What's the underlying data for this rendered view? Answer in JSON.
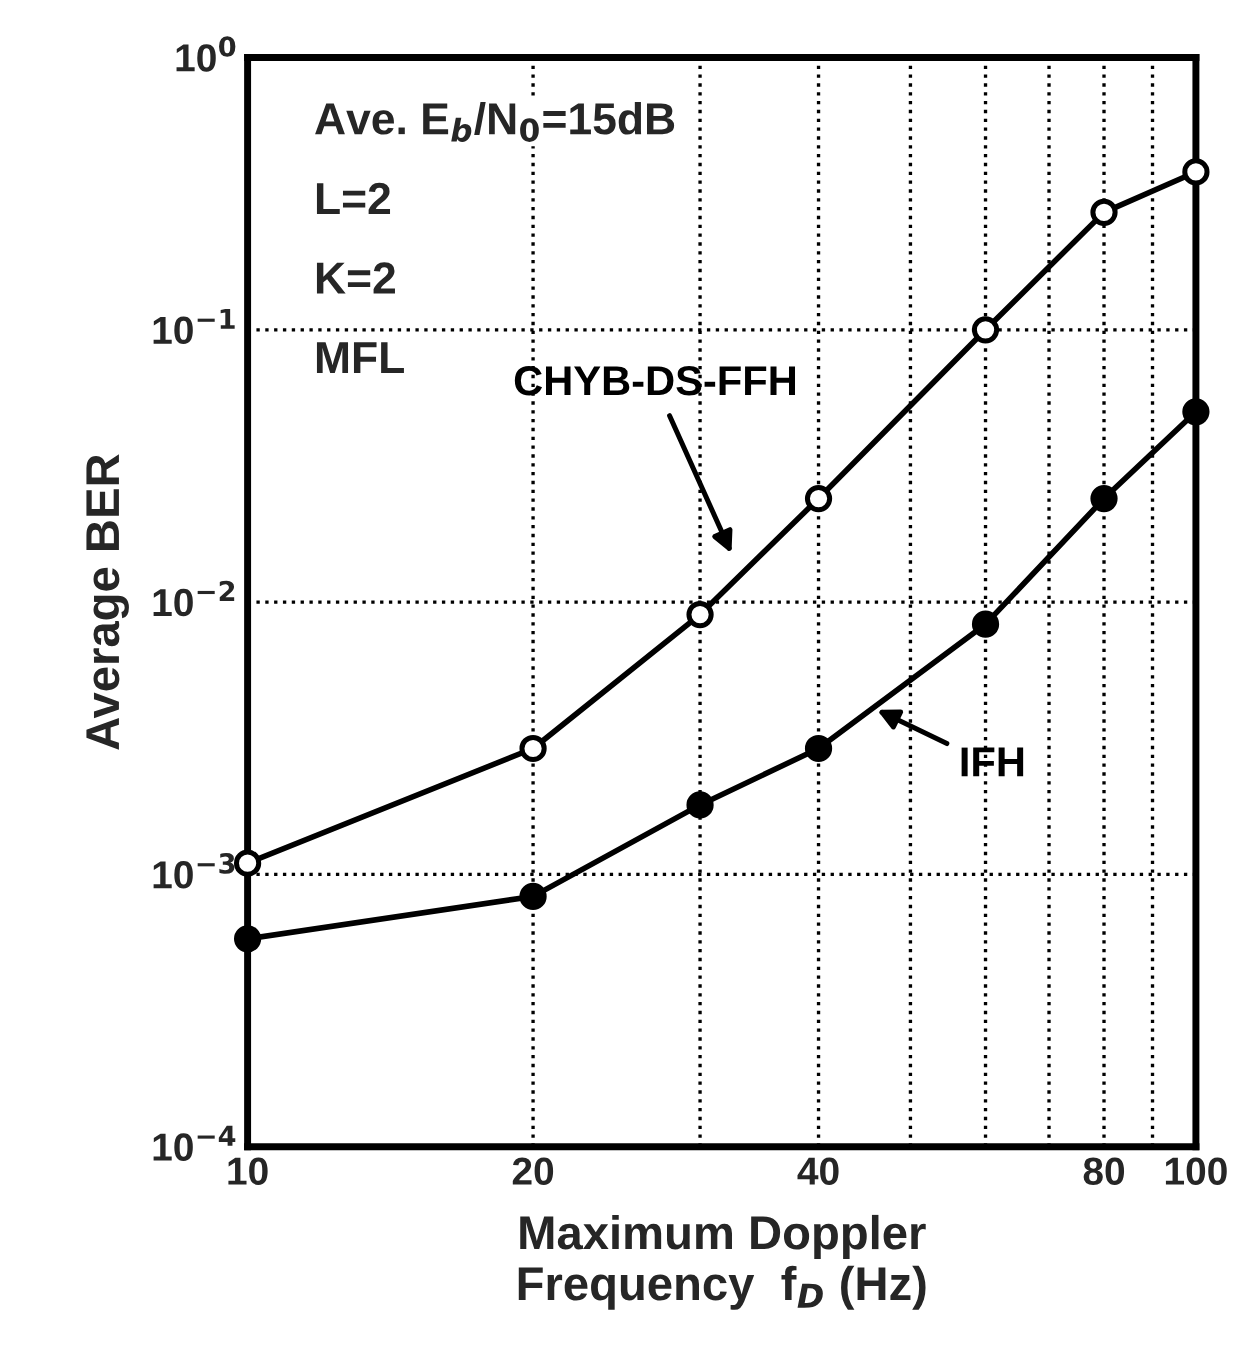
{
  "chart_data": {
    "type": "line",
    "xlabel": "Maximum Doppler\nFrequency  f$_{D}$ (Hz)",
    "ylabel": "Average BER",
    "x": [
      10,
      20,
      30,
      40,
      60,
      80,
      100
    ],
    "series": [
      {
        "name": "CHYB-DS-FFH",
        "color": "#000000",
        "values": [
          0.0011,
          0.0029,
          0.009,
          0.024,
          0.1,
          0.27,
          0.38
        ]
      },
      {
        "name": "IFH",
        "color": "#000000",
        "values": [
          0.00058,
          0.00083,
          0.0018,
          0.0029,
          0.0083,
          0.024,
          0.05
        ]
      }
    ],
    "annotations": [
      "Ave. E$_{b}$/N$_{0}$=15dB",
      "L=2",
      "K=2",
      "MFL"
    ],
    "log": "xy",
    "xlim": [
      10,
      100
    ],
    "ylim": [
      0.0001,
      1
    ],
    "xticks": [
      10,
      20,
      {
        "value": 30,
        "label": null
      },
      40,
      {
        "value": 50,
        "label": null
      },
      {
        "value": 60,
        "label": null
      },
      {
        "value": 70,
        "label": null
      },
      80,
      {
        "value": 90,
        "label": null
      },
      100
    ],
    "yticks": [
      {
        "value": 0.0001,
        "label": "10$^{−4}$"
      },
      {
        "value": 0.001,
        "label": "10$^{−3}$"
      },
      {
        "value": 0.01,
        "label": "10$^{−2}$"
      },
      {
        "value": 0.1,
        "label": "10$^{−1}$"
      },
      {
        "value": 1,
        "label": "10$^{0}$"
      }
    ],
    "grid": true,
    "legend": false,
    "marker": "circle",
    "line_style": "solid"
  }
}
